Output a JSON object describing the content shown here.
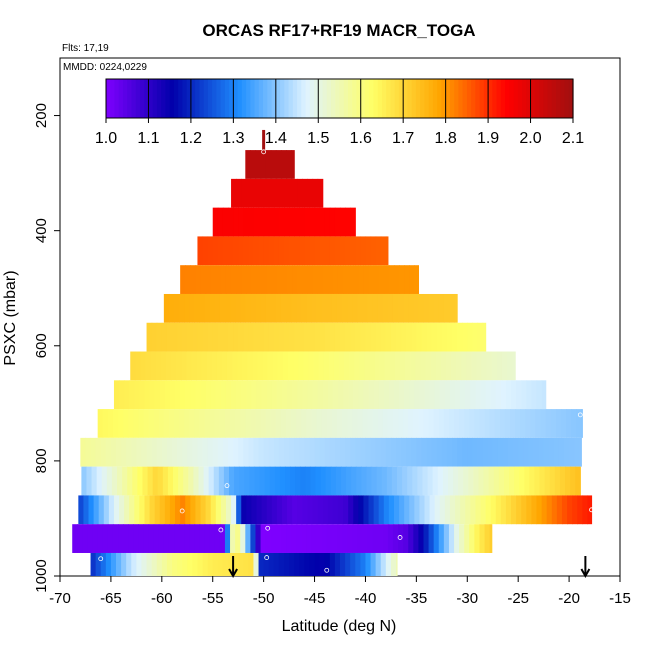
{
  "header": {
    "title": "ORCAS RF17+RF19 MACR_TOGA",
    "flights": "Flts: 17,19",
    "dates": "MMDD: 0224,0229"
  },
  "chart_data": {
    "type": "heatmap",
    "title": "ORCAS RF17+RF19 MACR_TOGA",
    "xlabel": "Latitude (deg N)",
    "ylabel": "PSXC (mbar)",
    "xlim": [
      -70,
      -15
    ],
    "ylim": [
      1000,
      100
    ],
    "x_ticks": [
      -70,
      -65,
      -60,
      -55,
      -50,
      -45,
      -40,
      -35,
      -30,
      -25,
      -20,
      -15
    ],
    "y_ticks": [
      200,
      400,
      600,
      800,
      1000
    ],
    "y_inverted": true,
    "colorbar": {
      "min": 1.0,
      "max": 2.1,
      "ticks": [
        1.0,
        1.1,
        1.2,
        1.3,
        1.4,
        1.5,
        1.6,
        1.7,
        1.8,
        1.9,
        2.0,
        2.1
      ],
      "stops": [
        "#7f00ff",
        "#0000aa",
        "#1f8fff",
        "#dff3ff",
        "#ffff66",
        "#ffa500",
        "#ff0000",
        "#a11010"
      ]
    },
    "bands": [
      {
        "p_top": 260,
        "p_bot": 310,
        "lat_min": -51.8,
        "lat_max": -47.0,
        "values": [
          [
            -51.8,
            2.06
          ],
          [
            -47.0,
            2.06
          ]
        ]
      },
      {
        "p_top": 310,
        "p_bot": 360,
        "lat_min": -53.2,
        "lat_max": -44.2,
        "values": [
          [
            -53.2,
            1.98
          ],
          [
            -44.2,
            1.98
          ]
        ]
      },
      {
        "p_top": 360,
        "p_bot": 410,
        "lat_min": -55.0,
        "lat_max": -41.0,
        "values": [
          [
            -55.0,
            1.95
          ],
          [
            -41.0,
            1.94
          ]
        ]
      },
      {
        "p_top": 410,
        "p_bot": 460,
        "lat_min": -56.5,
        "lat_max": -37.8,
        "values": [
          [
            -56.5,
            1.88
          ],
          [
            -37.8,
            1.85
          ]
        ]
      },
      {
        "p_top": 460,
        "p_bot": 510,
        "lat_min": -58.2,
        "lat_max": -34.8,
        "values": [
          [
            -58.2,
            1.82
          ],
          [
            -34.8,
            1.8
          ]
        ]
      },
      {
        "p_top": 510,
        "p_bot": 560,
        "lat_min": -59.8,
        "lat_max": -31.0,
        "values": [
          [
            -59.8,
            1.77
          ],
          [
            -45.0,
            1.74
          ],
          [
            -31.0,
            1.72
          ]
        ]
      },
      {
        "p_top": 560,
        "p_bot": 610,
        "lat_min": -61.5,
        "lat_max": -28.2,
        "values": [
          [
            -61.5,
            1.71
          ],
          [
            -45.0,
            1.68
          ],
          [
            -28.2,
            1.62
          ]
        ]
      },
      {
        "p_top": 610,
        "p_bot": 660,
        "lat_min": -63.1,
        "lat_max": -25.3,
        "values": [
          [
            -63.1,
            1.69
          ],
          [
            -45.0,
            1.62
          ],
          [
            -25.3,
            1.52
          ]
        ]
      },
      {
        "p_top": 660,
        "p_bot": 710,
        "lat_min": -64.7,
        "lat_max": -22.3,
        "values": [
          [
            -64.7,
            1.66
          ],
          [
            -45.0,
            1.57
          ],
          [
            -22.3,
            1.45
          ]
        ]
      },
      {
        "p_top": 710,
        "p_bot": 760,
        "lat_min": -66.3,
        "lat_max": -18.7,
        "values": [
          [
            -66.3,
            1.64
          ],
          [
            -45.0,
            1.52
          ],
          [
            -18.7,
            1.4
          ]
        ]
      },
      {
        "p_top": 760,
        "p_bot": 810,
        "lat_min": -68.0,
        "lat_max": -18.8,
        "values": [
          [
            -68.0,
            1.58
          ],
          [
            -50.0,
            1.45
          ],
          [
            -30.0,
            1.38
          ],
          [
            -18.8,
            1.4
          ]
        ]
      },
      {
        "p_top": 810,
        "p_bot": 860,
        "lat_min": -67.9,
        "lat_max": -18.9,
        "values": [
          [
            -67.9,
            1.4
          ],
          [
            -64.0,
            1.55
          ],
          [
            -60.5,
            1.7
          ],
          [
            -57.0,
            1.55
          ],
          [
            -53.0,
            1.35
          ],
          [
            -46.0,
            1.3
          ],
          [
            -38.0,
            1.38
          ],
          [
            -30.0,
            1.52
          ],
          [
            -25.0,
            1.62
          ],
          [
            -20.0,
            1.72
          ],
          [
            -18.9,
            1.74
          ]
        ]
      },
      {
        "p_top": 860,
        "p_bot": 910,
        "lat_min": -68.2,
        "lat_max": -17.8,
        "values": [
          [
            -68.2,
            1.22
          ],
          [
            -65.0,
            1.45
          ],
          [
            -61.0,
            1.7
          ],
          [
            -58.0,
            1.82
          ],
          [
            -55.5,
            1.7
          ],
          [
            -53.0,
            1.5
          ],
          [
            -52.2,
            1.15
          ],
          [
            -47.0,
            1.05
          ],
          [
            -42.0,
            1.08
          ],
          [
            -38.0,
            1.3
          ],
          [
            -33.0,
            1.48
          ],
          [
            -28.0,
            1.62
          ],
          [
            -24.0,
            1.75
          ],
          [
            -20.0,
            1.88
          ],
          [
            -17.8,
            1.92
          ]
        ]
      },
      {
        "p_top": 910,
        "p_bot": 960,
        "lat_min": -68.8,
        "lat_max": -27.6,
        "values": [
          [
            -68.8,
            1.02
          ],
          [
            -53.8,
            1.02
          ],
          [
            -53.5,
            1.35
          ],
          [
            -53.1,
            1.55
          ],
          [
            -52.4,
            1.6
          ],
          [
            -50.2,
            1.0
          ],
          [
            -38.0,
            1.02
          ],
          [
            -36.0,
            1.05
          ],
          [
            -34.5,
            1.15
          ],
          [
            -33.0,
            1.3
          ],
          [
            -31.0,
            1.5
          ],
          [
            -29.0,
            1.65
          ],
          [
            -27.6,
            1.72
          ]
        ]
      },
      {
        "p_top": 960,
        "p_bot": 1000,
        "lat_min": -67.0,
        "lat_max": -36.9,
        "values": [
          [
            -67.0,
            1.2
          ],
          [
            -63.0,
            1.45
          ],
          [
            -59.0,
            1.6
          ],
          [
            -55.0,
            1.66
          ],
          [
            -51.0,
            1.68
          ],
          [
            -50.3,
            1.2
          ],
          [
            -44.0,
            1.15
          ],
          [
            -40.0,
            1.3
          ],
          [
            -36.9,
            1.55
          ]
        ]
      }
    ],
    "spike": {
      "lat": -50.0,
      "p_top": 225,
      "p_bot": 260
    },
    "observations": [
      {
        "lat": -50.0,
        "p": 263
      },
      {
        "lat": -53.6,
        "p": 843
      },
      {
        "lat": -58.0,
        "p": 887
      },
      {
        "lat": -54.2,
        "p": 920
      },
      {
        "lat": -49.6,
        "p": 917
      },
      {
        "lat": -36.6,
        "p": 933
      },
      {
        "lat": -66.0,
        "p": 970
      },
      {
        "lat": -49.7,
        "p": 968
      },
      {
        "lat": -43.8,
        "p": 990
      },
      {
        "lat": -18.9,
        "p": 720
      },
      {
        "lat": -17.8,
        "p": 885
      }
    ],
    "arrows": [
      {
        "lat": -53.0
      },
      {
        "lat": -18.4
      }
    ],
    "grid": false,
    "legend": "colorbar-top"
  }
}
